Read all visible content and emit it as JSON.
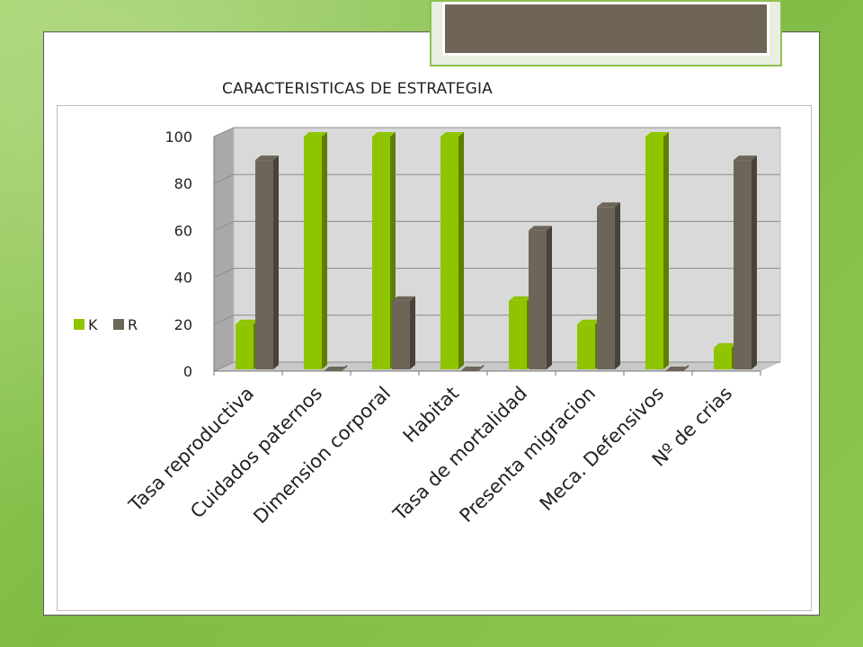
{
  "chart_data": {
    "type": "bar",
    "title": "CARACTERISTICAS DE ESTRATEGIA",
    "categories": [
      "Tasa reproductiva",
      "Cuidados paternos",
      "Dimension corporal",
      "Habitat",
      "Tasa de mortalidad",
      "Presenta migracion",
      "Meca. Defensivos",
      "Nº de crias"
    ],
    "series": [
      {
        "name": "K",
        "values": [
          20,
          100,
          100,
          100,
          30,
          20,
          100,
          10
        ]
      },
      {
        "name": "R",
        "values": [
          90,
          0,
          30,
          0,
          60,
          70,
          0,
          90
        ]
      }
    ],
    "ylim": [
      0,
      100
    ],
    "yticks": [
      "0",
      "20",
      "40",
      "60",
      "80",
      "100"
    ],
    "grid": true,
    "legend_position": "left",
    "style": "3d-column",
    "colors": {
      "K": "#8fc400",
      "R": "#6e6559",
      "wall": "#d9d9d9"
    }
  }
}
